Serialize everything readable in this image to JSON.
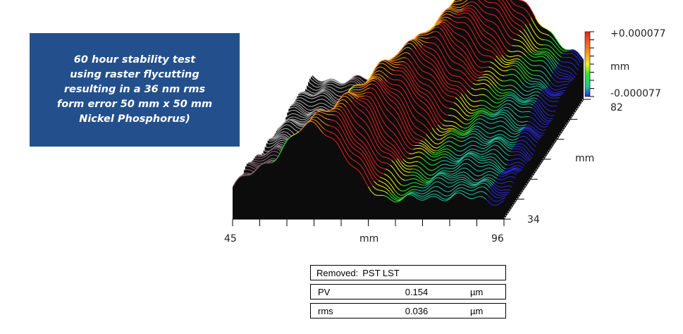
{
  "callout": {
    "text": "60 hour stability test\nusing raster flycutting\nresulting in a 36 nm rms\nform error 50 mm x 50 mm\nNickel Phosphorus)"
  },
  "chart_data": {
    "type": "surface-3d",
    "title": "",
    "x_axis": {
      "label": "mm",
      "min": 45,
      "max": 96,
      "ticks": [
        "45",
        "96"
      ]
    },
    "y_axis": {
      "label": "mm",
      "ticks": [
        "82",
        "34"
      ]
    },
    "colorbar": {
      "max_label": "+0.000077",
      "unit": "mm",
      "min_label": "-0.000077"
    },
    "colors": [
      "#2a2adc",
      "#22c39a",
      "#2ee82e",
      "#f0f01e",
      "#ff8a1e",
      "#ee2020"
    ]
  },
  "stats": {
    "header_label": "Removed:",
    "header_value": "PST LST",
    "rows": [
      {
        "label": "PV",
        "value": "0.154",
        "unit": "µm"
      },
      {
        "label": "rms",
        "value": "0.036",
        "unit": "µm"
      }
    ]
  }
}
